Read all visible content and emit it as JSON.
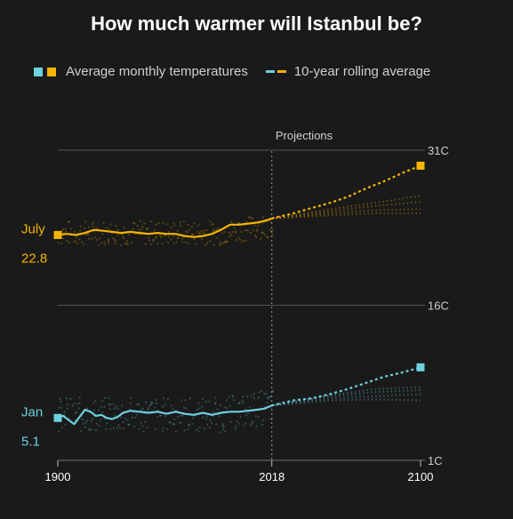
{
  "title": "How much warmer will Istanbul be?",
  "legend": {
    "observed_label": "Average monthly temperatures",
    "rolling_label": "10-year rolling average"
  },
  "colors": {
    "july": "#f4b400",
    "jan": "#6ed0e0",
    "grid": "#555555",
    "text": "#cfcfcf",
    "background": "#1a1a1a"
  },
  "chart_data": {
    "type": "line",
    "title": "How much warmer will Istanbul be?",
    "xlim": [
      1900,
      2100
    ],
    "ylim": [
      1,
      31
    ],
    "x_ticks": [
      1900,
      2018,
      2100
    ],
    "y_ticks": [
      {
        "value": 31,
        "label": "31C"
      },
      {
        "value": 16,
        "label": "16C"
      },
      {
        "value": 1,
        "label": "1C"
      }
    ],
    "projection_start": 2018,
    "projection_label": "Projections",
    "series": [
      {
        "name": "July",
        "start_label": "July",
        "start_value_label": "22.8",
        "color": "#f4b400",
        "start_value": 22.8,
        "rolling_observed": [
          {
            "x": 1900,
            "y": 22.8
          },
          {
            "x": 1905,
            "y": 22.9
          },
          {
            "x": 1910,
            "y": 22.8
          },
          {
            "x": 1915,
            "y": 23.0
          },
          {
            "x": 1920,
            "y": 23.3
          },
          {
            "x": 1925,
            "y": 23.2
          },
          {
            "x": 1930,
            "y": 23.1
          },
          {
            "x": 1935,
            "y": 23.0
          },
          {
            "x": 1940,
            "y": 23.1
          },
          {
            "x": 1945,
            "y": 23.0
          },
          {
            "x": 1950,
            "y": 22.9
          },
          {
            "x": 1955,
            "y": 23.0
          },
          {
            "x": 1960,
            "y": 22.9
          },
          {
            "x": 1965,
            "y": 22.9
          },
          {
            "x": 1970,
            "y": 22.7
          },
          {
            "x": 1975,
            "y": 22.6
          },
          {
            "x": 1980,
            "y": 22.7
          },
          {
            "x": 1985,
            "y": 22.9
          },
          {
            "x": 1990,
            "y": 23.3
          },
          {
            "x": 1995,
            "y": 23.8
          },
          {
            "x": 2000,
            "y": 23.8
          },
          {
            "x": 2005,
            "y": 23.9
          },
          {
            "x": 2010,
            "y": 24.0
          },
          {
            "x": 2015,
            "y": 24.2
          },
          {
            "x": 2018,
            "y": 24.4
          }
        ],
        "rolling_projected": [
          {
            "x": 2018,
            "y": 24.4
          },
          {
            "x": 2030,
            "y": 24.9
          },
          {
            "x": 2040,
            "y": 25.4
          },
          {
            "x": 2050,
            "y": 25.9
          },
          {
            "x": 2060,
            "y": 26.5
          },
          {
            "x": 2070,
            "y": 27.3
          },
          {
            "x": 2080,
            "y": 28.0
          },
          {
            "x": 2090,
            "y": 28.8
          },
          {
            "x": 2100,
            "y": 29.5
          }
        ],
        "projection_end_value": 29.5,
        "faded_projections": [
          [
            {
              "x": 2018,
              "y": 24.4
            },
            {
              "x": 2050,
              "y": 25.3
            },
            {
              "x": 2075,
              "y": 25.9
            },
            {
              "x": 2100,
              "y": 26.6
            }
          ],
          [
            {
              "x": 2018,
              "y": 24.4
            },
            {
              "x": 2050,
              "y": 25.1
            },
            {
              "x": 2075,
              "y": 25.6
            },
            {
              "x": 2100,
              "y": 26.0
            }
          ],
          [
            {
              "x": 2018,
              "y": 24.4
            },
            {
              "x": 2050,
              "y": 24.9
            },
            {
              "x": 2075,
              "y": 25.2
            },
            {
              "x": 2100,
              "y": 25.3
            }
          ],
          [
            {
              "x": 2018,
              "y": 24.4
            },
            {
              "x": 2050,
              "y": 24.7
            },
            {
              "x": 2075,
              "y": 24.9
            },
            {
              "x": 2100,
              "y": 24.9
            }
          ]
        ],
        "scatter_base": 23.0,
        "scatter_spread": 1.2
      },
      {
        "name": "Jan",
        "start_label": "Jan",
        "start_value_label": "5.1",
        "color": "#6ed0e0",
        "start_value": 5.1,
        "rolling_observed": [
          {
            "x": 1900,
            "y": 5.1
          },
          {
            "x": 1903,
            "y": 5.3
          },
          {
            "x": 1906,
            "y": 4.9
          },
          {
            "x": 1909,
            "y": 4.5
          },
          {
            "x": 1912,
            "y": 5.2
          },
          {
            "x": 1915,
            "y": 5.9
          },
          {
            "x": 1918,
            "y": 5.7
          },
          {
            "x": 1921,
            "y": 5.3
          },
          {
            "x": 1924,
            "y": 5.4
          },
          {
            "x": 1927,
            "y": 5.1
          },
          {
            "x": 1930,
            "y": 5.0
          },
          {
            "x": 1933,
            "y": 5.2
          },
          {
            "x": 1936,
            "y": 5.6
          },
          {
            "x": 1940,
            "y": 5.8
          },
          {
            "x": 1945,
            "y": 5.7
          },
          {
            "x": 1950,
            "y": 5.6
          },
          {
            "x": 1955,
            "y": 5.7
          },
          {
            "x": 1960,
            "y": 5.5
          },
          {
            "x": 1965,
            "y": 5.7
          },
          {
            "x": 1970,
            "y": 5.5
          },
          {
            "x": 1975,
            "y": 5.4
          },
          {
            "x": 1980,
            "y": 5.6
          },
          {
            "x": 1985,
            "y": 5.4
          },
          {
            "x": 1990,
            "y": 5.6
          },
          {
            "x": 1995,
            "y": 5.7
          },
          {
            "x": 2000,
            "y": 5.7
          },
          {
            "x": 2005,
            "y": 5.8
          },
          {
            "x": 2010,
            "y": 5.9
          },
          {
            "x": 2014,
            "y": 6.0
          },
          {
            "x": 2018,
            "y": 6.3
          }
        ],
        "rolling_projected": [
          {
            "x": 2018,
            "y": 6.3
          },
          {
            "x": 2030,
            "y": 6.8
          },
          {
            "x": 2040,
            "y": 7.0
          },
          {
            "x": 2050,
            "y": 7.4
          },
          {
            "x": 2060,
            "y": 7.9
          },
          {
            "x": 2070,
            "y": 8.5
          },
          {
            "x": 2080,
            "y": 9.1
          },
          {
            "x": 2090,
            "y": 9.5
          },
          {
            "x": 2100,
            "y": 10.0
          }
        ],
        "projection_end_value": 10.0,
        "faded_projections": [
          [
            {
              "x": 2018,
              "y": 6.3
            },
            {
              "x": 2050,
              "y": 7.3
            },
            {
              "x": 2075,
              "y": 7.9
            },
            {
              "x": 2100,
              "y": 8.1
            }
          ],
          [
            {
              "x": 2018,
              "y": 6.3
            },
            {
              "x": 2050,
              "y": 7.2
            },
            {
              "x": 2075,
              "y": 7.6
            },
            {
              "x": 2100,
              "y": 7.8
            }
          ],
          [
            {
              "x": 2018,
              "y": 6.3
            },
            {
              "x": 2050,
              "y": 7.0
            },
            {
              "x": 2075,
              "y": 7.2
            },
            {
              "x": 2100,
              "y": 7.4
            }
          ],
          [
            {
              "x": 2018,
              "y": 6.3
            },
            {
              "x": 2050,
              "y": 6.8
            },
            {
              "x": 2075,
              "y": 6.9
            },
            {
              "x": 2100,
              "y": 6.8
            }
          ]
        ],
        "scatter_base": 5.4,
        "scatter_spread": 1.7
      }
    ]
  }
}
